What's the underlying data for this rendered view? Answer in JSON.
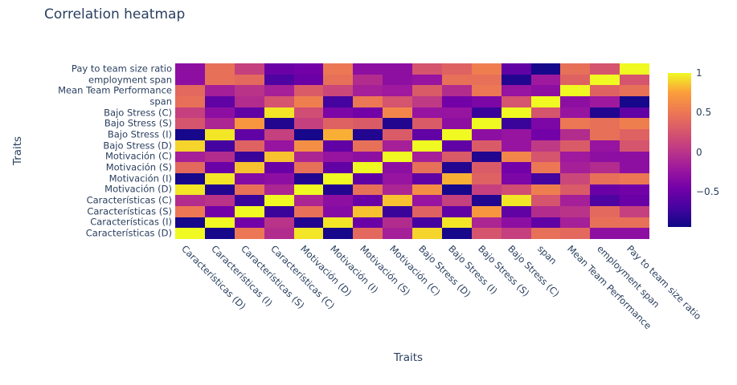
{
  "title": "Correlation heatmap",
  "x_axis_title": "Traits",
  "y_axis_title": "Traits",
  "colorbar": {
    "tick_labels": [
      "1",
      "0.5",
      "0",
      "−0.5"
    ],
    "tick_values": [
      1,
      0.5,
      0,
      -0.5
    ]
  },
  "accent_text_color": "#2a3f5f",
  "chart_data": {
    "type": "heatmap",
    "colorscale": "plasma",
    "zmin": -0.94,
    "zmax": 1,
    "grid": false,
    "legend_position": "right-colorbar",
    "x_labels": [
      "Características (D)",
      "Características (I)",
      "Características (S)",
      "Características (C)",
      "Motivación (D)",
      "Motivación (I)",
      "Motivación (S)",
      "Motivación (C)",
      "Bajo Stress (D)",
      "Bajo Stress (I)",
      "Bajo Stress (S)",
      "Bajo Stress (C)",
      "span",
      "Mean Team Performance",
      "employment span",
      "Pay to team size ratio"
    ],
    "y_labels": [
      "Pay to team size ratio",
      "employment span",
      "Mean Team Performance",
      "span",
      "Bajo Stress (C)",
      "Bajo Stress (S)",
      "Bajo Stress (I)",
      "Bajo Stress (D)",
      "Motivación (C)",
      "Motivación (S)",
      "Motivación (I)",
      "Motivación (D)",
      "Características (C)",
      "Características (S)",
      "Características (I)",
      "Características (D)"
    ],
    "z": [
      [
        -0.3,
        0.45,
        0.1,
        -0.5,
        -0.45,
        0.5,
        -0.3,
        -0.3,
        0.25,
        0.35,
        0.55,
        -0.55,
        -0.9,
        0.45,
        0.25,
        1
      ],
      [
        -0.3,
        0.45,
        0.4,
        -0.65,
        -0.5,
        0.45,
        -0.05,
        -0.3,
        -0.25,
        0.45,
        0.45,
        -0.85,
        -0.2,
        0.35,
        1,
        0.25
      ],
      [
        0.4,
        -0.15,
        0,
        -0.15,
        0.3,
        0.15,
        -0.15,
        -0.2,
        0.3,
        -0.05,
        0.5,
        -0.25,
        -0.3,
        1,
        0.35,
        0.45
      ],
      [
        0.45,
        -0.55,
        -0.05,
        0.25,
        0.55,
        -0.7,
        0.5,
        0.25,
        0.05,
        -0.45,
        -0.4,
        0.25,
        1,
        -0.3,
        -0.2,
        -0.9
      ],
      [
        0.1,
        -0.3,
        -0.55,
        0.95,
        0.2,
        -0.4,
        -0.45,
        0.6,
        -0.25,
        -0.25,
        -0.75,
        1,
        0.25,
        -0.25,
        -0.85,
        -0.55
      ],
      [
        0.25,
        -0.1,
        0.7,
        -0.85,
        0.1,
        0.35,
        0.3,
        -0.85,
        0.3,
        -0.3,
        1,
        -0.75,
        -0.4,
        0.5,
        0.45,
        0.55
      ],
      [
        -0.9,
        0.95,
        -0.55,
        0.1,
        -0.9,
        0.8,
        -0.85,
        0.3,
        -0.55,
        1,
        -0.3,
        -0.25,
        -0.45,
        -0.05,
        0.45,
        0.35
      ],
      [
        0.9,
        -0.7,
        0.35,
        -0.25,
        0.65,
        -0.55,
        0.45,
        -0.15,
        1,
        -0.55,
        0.3,
        -0.25,
        0.05,
        0.3,
        -0.25,
        0.25
      ],
      [
        -0.15,
        -0.05,
        -0.75,
        0.85,
        -0.1,
        -0.25,
        -0.3,
        1,
        -0.15,
        0.3,
        -0.85,
        0.6,
        0.25,
        -0.2,
        -0.3,
        -0.3
      ],
      [
        0.4,
        -0.5,
        0.85,
        -0.5,
        0.45,
        -0.55,
        1,
        -0.3,
        0.45,
        -0.85,
        0.3,
        -0.45,
        0.5,
        -0.15,
        -0.05,
        -0.3
      ],
      [
        -0.9,
        0.95,
        -0.35,
        -0.3,
        -0.85,
        1,
        -0.55,
        -0.25,
        -0.55,
        0.8,
        0.35,
        -0.4,
        -0.7,
        0.15,
        0.45,
        0.5
      ],
      [
        0.95,
        -0.85,
        0.45,
        -0.1,
        1,
        -0.85,
        0.45,
        -0.1,
        0.65,
        -0.9,
        0.1,
        0.2,
        0.55,
        0.3,
        -0.5,
        -0.45
      ],
      [
        -0.05,
        0,
        -0.75,
        1,
        -0.1,
        -0.3,
        -0.5,
        0.85,
        -0.25,
        0.1,
        -0.85,
        0.95,
        0.25,
        -0.15,
        -0.65,
        -0.5
      ],
      [
        0.5,
        -0.45,
        1,
        -0.75,
        0.45,
        -0.35,
        0.85,
        -0.75,
        0.35,
        -0.55,
        0.7,
        -0.55,
        -0.05,
        0,
        0.4,
        0.1
      ],
      [
        -0.9,
        1,
        -0.45,
        0,
        -0.85,
        0.95,
        -0.5,
        -0.05,
        -0.7,
        0.95,
        -0.1,
        -0.3,
        -0.55,
        -0.15,
        0.45,
        0.45
      ],
      [
        1,
        -0.9,
        0.5,
        -0.05,
        0.95,
        -0.9,
        0.4,
        -0.15,
        0.9,
        -0.9,
        0.25,
        0.1,
        0.45,
        0.4,
        -0.3,
        -0.3
      ]
    ]
  }
}
